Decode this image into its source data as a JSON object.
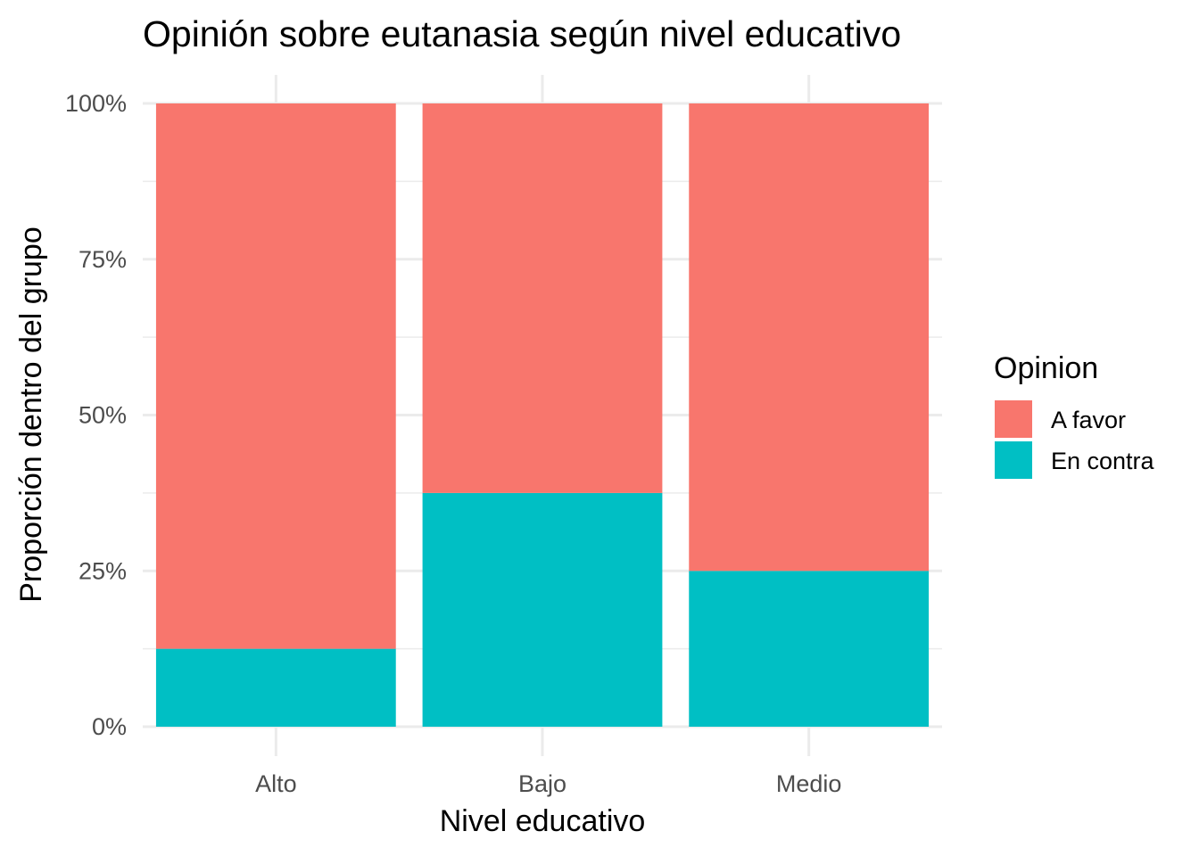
{
  "chart_data": {
    "type": "bar",
    "stacked": true,
    "position": "fill",
    "title": "Opinión sobre eutanasia según nivel educativo",
    "xlabel": "Nivel educativo",
    "ylabel": "Proporción dentro del grupo",
    "ylim": [
      0,
      1
    ],
    "yticks": [
      0,
      0.25,
      0.5,
      0.75,
      1
    ],
    "ytick_labels": [
      "0%",
      "25%",
      "50%",
      "75%",
      "100%"
    ],
    "categories": [
      "Alto",
      "Bajo",
      "Medio"
    ],
    "series": [
      {
        "name": "A favor",
        "color": "#F8766D",
        "values": [
          0.875,
          0.625,
          0.75
        ]
      },
      {
        "name": "En contra",
        "color": "#00BFC4",
        "values": [
          0.125,
          0.375,
          0.25
        ]
      }
    ],
    "legend": {
      "title": "Opinion",
      "placement": "right"
    },
    "grid": true
  }
}
